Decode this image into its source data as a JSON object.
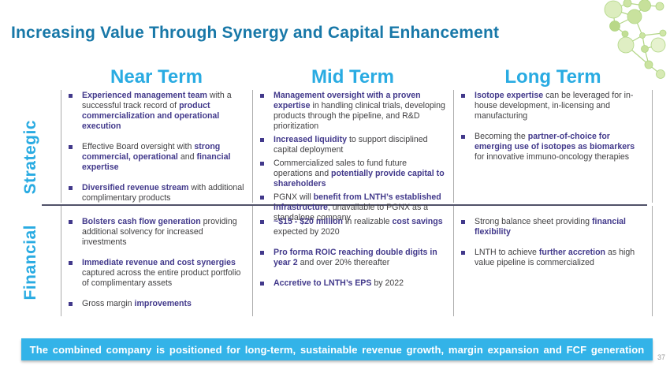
{
  "slide": {
    "title": "Increasing Value Through Synergy and Capital Enhancement",
    "banner": "The combined company is positioned for long-term, sustainable revenue growth, margin expansion and FCF generation",
    "page_number": "37"
  },
  "colors": {
    "accent_cyan": "#29ABE2",
    "title_teal": "#1878A8",
    "emphasis_purple": "#42398B",
    "body_text": "#414042",
    "banner_bg": "#33B3E8",
    "topbar_green": "#76B843"
  },
  "matrix": {
    "column_headers": [
      "Near Term",
      "Mid Term",
      "Long Term"
    ],
    "row_labels": [
      "Strategic",
      "Financial"
    ],
    "cells": {
      "strategic": [
        [
          [
            {
              "t": "Experienced management team",
              "b": true
            },
            {
              "t": " with a successful track record of ",
              "b": false
            },
            {
              "t": "product commercialization and operational execution",
              "b": true
            }
          ],
          [
            {
              "t": "Effective Board oversight with ",
              "b": false
            },
            {
              "t": "strong commercial, operational",
              "b": true
            },
            {
              "t": " and ",
              "b": false
            },
            {
              "t": "financial expertise",
              "b": true
            }
          ],
          [
            {
              "t": "Diversified revenue stream",
              "b": true
            },
            {
              "t": " with additional complimentary products",
              "b": false
            }
          ]
        ],
        [
          [
            {
              "t": "Management oversight with a proven expertise",
              "b": true
            },
            {
              "t": " in handling clinical trials, developing products through the pipeline, and R&D prioritization",
              "b": false
            }
          ],
          [
            {
              "t": "Increased liquidity",
              "b": true
            },
            {
              "t": " to support disciplined capital deployment",
              "b": false
            }
          ],
          [
            {
              "t": "Commercialized sales to fund future operations and ",
              "b": false
            },
            {
              "t": "potentially provide capital to shareholders",
              "b": true
            }
          ],
          [
            {
              "t": "PGNX will ",
              "b": false
            },
            {
              "t": "benefit from LNTH’s established infrastructure",
              "b": true
            },
            {
              "t": ", unavailable to PGNX as a standalone company",
              "b": false
            }
          ]
        ],
        [
          [
            {
              "t": "Isotope expertise",
              "b": true
            },
            {
              "t": " can be leveraged for in-house development,  in-licensing and manufacturing",
              "b": false
            }
          ],
          [
            {
              "t": "Becoming the ",
              "b": false
            },
            {
              "t": "partner-of-choice for emerging use of isotopes as biomarkers",
              "b": true
            },
            {
              "t": " for innovative immuno-oncology  therapies",
              "b": false
            }
          ]
        ]
      ],
      "financial": [
        [
          [
            {
              "t": "Bolsters cash flow generation",
              "b": true
            },
            {
              "t": " providing additional solvency for increased investments",
              "b": false
            }
          ],
          [
            {
              "t": "Immediate revenue and cost synergies",
              "b": true
            },
            {
              "t": " captured across the entire product portfolio of complimentary assets",
              "b": false
            }
          ],
          [
            {
              "t": "Gross margin ",
              "b": false
            },
            {
              "t": "improvements",
              "b": true
            }
          ]
        ],
        [
          [
            {
              "t": "~$15 - $20 million",
              "b": true
            },
            {
              "t": " in realizable ",
              "b": false
            },
            {
              "t": "cost savings",
              "b": true
            },
            {
              "t": " expected by 2020",
              "b": false
            }
          ],
          [
            {
              "t": "Pro forma ROIC reaching double digits in year 2",
              "b": true
            },
            {
              "t": " and over 20% thereafter",
              "b": false
            }
          ],
          [
            {
              "t": "Accretive to LNTH’s EPS",
              "b": true
            },
            {
              "t": " by 2022",
              "b": false
            }
          ]
        ],
        [
          [
            {
              "t": "Strong balance sheet providing ",
              "b": false
            },
            {
              "t": "financial flexibility",
              "b": true
            }
          ],
          [
            {
              "t": "LNTH to achieve ",
              "b": false
            },
            {
              "t": "further accretion",
              "b": true
            },
            {
              "t": " as high value pipeline is commercialized",
              "b": false
            }
          ]
        ]
      ]
    }
  }
}
